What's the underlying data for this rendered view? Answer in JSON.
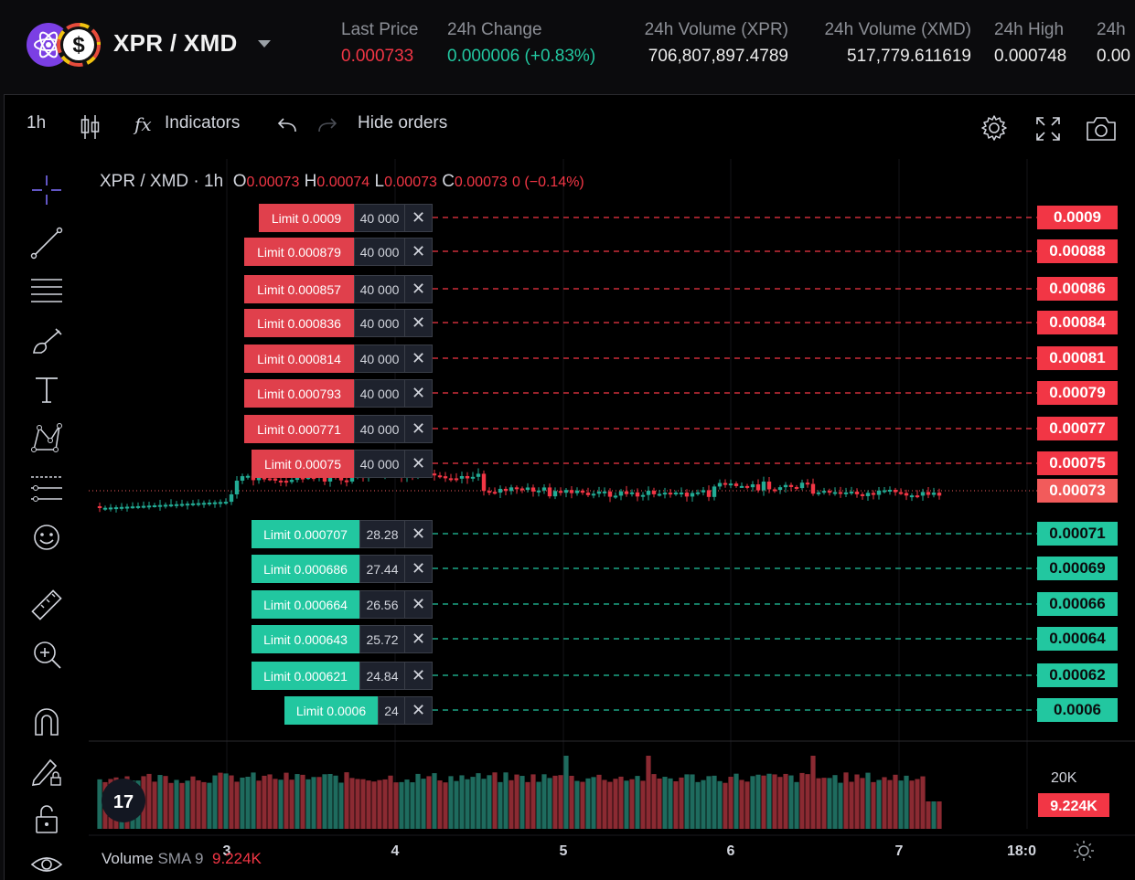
{
  "header": {
    "pair": "XPR / XMD",
    "stats": [
      {
        "label": "Last Price",
        "value": "0.000733",
        "color": "#f23645"
      },
      {
        "label": "24h Change",
        "value": "0.000006 (+0.83%)",
        "color": "#22c7a0"
      },
      {
        "label": "24h Volume (XPR)",
        "value": "706,807,897.4789",
        "color": "#ececec"
      },
      {
        "label": "24h Volume (XMD)",
        "value": "517,779.611619",
        "color": "#ececec"
      },
      {
        "label": "24h High",
        "value": "0.000748",
        "color": "#ececec"
      },
      {
        "label": "24h",
        "value": "0.00",
        "color": "#ececec"
      }
    ]
  },
  "toolbar": {
    "interval": "1h",
    "indicators_label": "Indicators",
    "fx_label": "fx",
    "hide_orders_label": "Hide orders"
  },
  "legend": {
    "symbol": "XPR / XMD · 1h",
    "o_key": "O",
    "o_val": "0.00073",
    "h_key": "H",
    "h_val": "0.00074",
    "l_key": "L",
    "l_val": "0.00073",
    "c_key": "C",
    "c_val": "0.00073",
    "change": "0 (−0.14%)"
  },
  "sell_orders": [
    {
      "label": "Limit  0.0009",
      "qty": "40 000",
      "tag": "0.0009"
    },
    {
      "label": "Limit  0.000879",
      "qty": "40 000",
      "tag": "0.00088"
    },
    {
      "label": "Limit  0.000857",
      "qty": "40 000",
      "tag": "0.00086"
    },
    {
      "label": "Limit  0.000836",
      "qty": "40 000",
      "tag": "0.00084"
    },
    {
      "label": "Limit  0.000814",
      "qty": "40 000",
      "tag": "0.00081"
    },
    {
      "label": "Limit  0.000793",
      "qty": "40 000",
      "tag": "0.00079"
    },
    {
      "label": "Limit  0.000771",
      "qty": "40 000",
      "tag": "0.00077"
    },
    {
      "label": "Limit  0.00075",
      "qty": "40 000",
      "tag": "0.00075"
    }
  ],
  "current_price_tag": "0.00073",
  "buy_orders": [
    {
      "label": "Limit  0.000707",
      "qty": "28.28",
      "tag": "0.00071"
    },
    {
      "label": "Limit  0.000686",
      "qty": "27.44",
      "tag": "0.00069"
    },
    {
      "label": "Limit  0.000664",
      "qty": "26.56",
      "tag": "0.00066"
    },
    {
      "label": "Limit  0.000643",
      "qty": "25.72",
      "tag": "0.00064"
    },
    {
      "label": "Limit  0.000621",
      "qty": "24.84",
      "tag": "0.00062"
    },
    {
      "label": "Limit  0.0006",
      "qty": "24",
      "tag": "0.0006"
    }
  ],
  "volume": {
    "title": "Volume",
    "sma": "SMA 9",
    "value": "9.224K",
    "axis_label": "20K",
    "tag": "9.224K"
  },
  "x_axis": [
    "3",
    "4",
    "5",
    "6",
    "7",
    "18:0"
  ],
  "colors": {
    "up": "#22ab94",
    "down": "#f23645",
    "sell_label": "#e0404c",
    "buy_label": "#22c7a0"
  }
}
